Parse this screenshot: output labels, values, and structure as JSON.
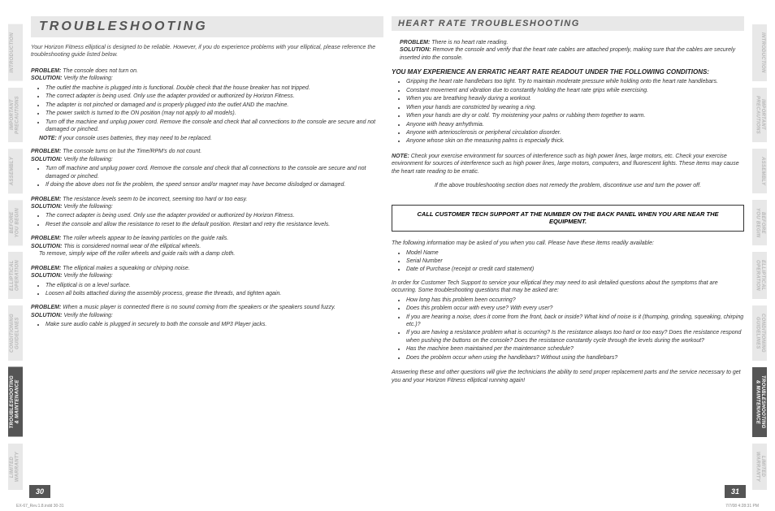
{
  "tabs": [
    {
      "label": "INTRODUCTION",
      "active": false
    },
    {
      "label": "IMPORTANT\nPRECAUTIONS",
      "active": false
    },
    {
      "label": "ASSEMBLY",
      "active": false
    },
    {
      "label": "BEFORE\nYOU BEGIN",
      "active": false
    },
    {
      "label": "ELLIPTICAL\nOPERATION",
      "active": false
    },
    {
      "label": "CONDITIONING\nGUIDELINES",
      "active": false
    },
    {
      "label": "TROUBLESHOOTING\n& MAINTENANCE",
      "active": true
    },
    {
      "label": "LIMITED\nWARRANTY",
      "active": false
    }
  ],
  "left": {
    "title": "TROUBLESHOOTING",
    "intro": "Your Horizon Fitness elliptical is designed to be reliable. However, if you do experience problems with your elliptical, please reference the troubleshooting guide listed below.",
    "items": [
      {
        "problem": "The console does not turn on.",
        "solution": "Verify the following:",
        "bullets": [
          "The outlet the machine is plugged into is functional. Double check that the house breaker has not tripped.",
          "The correct adapter is being used. Only use the adapter provided or authorized by Horizon Fitness.",
          "The adapter is not pinched or damaged and is properly plugged into the outlet AND the machine.",
          "The power switch is turned to the ON position (may not apply to all models).",
          "Turn off the machine and unplug power cord.  Remove the console and check that all connections to the console are secure and not damaged or pinched."
        ],
        "note": "If your console uses batteries, they may need to be replaced."
      },
      {
        "problem": "The console turns on but the Time/RPM's do not count.",
        "solution": "Verify the following:",
        "bullets": [
          "Turn off machine and unplug power cord. Remove the console and check that all connections to the console are secure and not damaged or pinched.",
          "If doing the above does not fix the problem, the speed sensor and/or magnet may have become dislodged or damaged."
        ]
      },
      {
        "problem": "The resistance levels seem to be incorrect, seeming too hard or too easy.",
        "solution": "Verify the following:",
        "bullets": [
          "The correct adapter is being used. Only use the adapter provided or authorized by Horizon Fitness.",
          "Reset the console and allow the resistance to reset to the default position. Restart and retry the resistance levels."
        ]
      },
      {
        "problem": "The roller wheels appear to be leaving particles on the guide rails.",
        "solution": "This is considered normal wear of the elliptical wheels.",
        "extra": "To remove, simply wipe off the roller wheels and guide rails with a damp cloth."
      },
      {
        "problem": "The elliptical makes a squeaking or chirping noise.",
        "solution": "Verify the following:",
        "bullets": [
          "The elliptical is on a level surface.",
          "Loosen all bolts attached during the assembly process, grease the threads, and tighten again."
        ]
      },
      {
        "problem": "When a music player is connected there is no sound coming from the speakers or the speakers sound fuzzy.",
        "solution": "Verify the following:",
        "bullets": [
          "Make sure audio cable is plugged in securely to both the console and MP3 Player jacks."
        ]
      }
    ],
    "pagenum": "30"
  },
  "right": {
    "subtitle": "HEART RATE TROUBLESHOOTING",
    "hr": {
      "problem": "There is no heart rate reading.",
      "solution": "Remove the console and verify that the heart rate cables are attached properly, making sure that the cables are securely inserted into the console."
    },
    "condHead": "YOU MAY EXPERIENCE AN ERRATIC HEART RATE READOUT UNDER THE FOLLOWING CONDITIONS:",
    "condBullets": [
      "Gripping the heart rate handlebars too tight. Try to maintain moderate pressure while holding onto the heart rate handlebars.",
      "Constant movement and vibration due to constantly holding the heart rate grips while exercising.",
      "When you are breathing heavily during a workout.",
      "When your hands are constricted by wearing a ring.",
      "When your hands are dry or cold. Try moistening your palms or rubbing them together to warm.",
      "Anyone with heavy arrhythmia.",
      "Anyone with arteriosclerosis or peripheral circulation disorder.",
      "Anyone whose skin on the measuring palms is especially thick."
    ],
    "note1": "Check your exercise environment for sources of interference such as high power lines, large motors, etc. Check your exercise environment for sources of interference such as high power lines, large motors, computers, and fluorescent lights.  These items may cause the heart rate reading to be erratic.",
    "note2": "If the above troubleshooting section does not remedy the problem, discontinue use and turn the power off.",
    "callbox": "CALL CUSTOMER TECH SUPPORT AT THE NUMBER ON THE BACK PANEL WHEN YOU ARE NEAR THE EQUIPMENT.",
    "infoIntro": "The following information may be asked of you when you call. Please have these items readily available:",
    "infoBullets": [
      "Model Name",
      "Serial Number",
      "Date of Purchase (receipt or credit card statement)"
    ],
    "qIntro": "In order for Customer Tech Support to service your elliptical they may need to ask detailed questions about the symptoms that are occurring. Some troubleshooting questions that may be asked are:",
    "qBullets": [
      "How long has this problem been occurring?",
      "Does this problem occur with every use? With every user?",
      "If you are hearing a noise, does it come from the front, back or inside? What kind of noise is it (thumping, grinding, squeaking, chirping etc.)?",
      "If you are having a resistance problem what is occurring? Is the resistance always too hard or too easy? Does the resistance respond when pushing the buttons on the console? Does the resistance constantly cycle through the levels during the workout?",
      "Has the machine been maintained per the maintenance schedule?",
      "Does the problem occur when using the handlebars? Without using the handlebars?"
    ],
    "closing": "Answering these and other questions will give the technicians the ability to send proper replacement parts and the service necessary to get you and your Horizon Fitness elliptical running again!",
    "pagenum": "31"
  },
  "footer": {
    "left": "EX-67_Rev.1.8.indd   30-31",
    "right": "7/7/08   4:28:31 PM"
  },
  "labels": {
    "problem": "PROBLEM:",
    "solution": "SOLUTION:",
    "note": "NOTE:"
  }
}
